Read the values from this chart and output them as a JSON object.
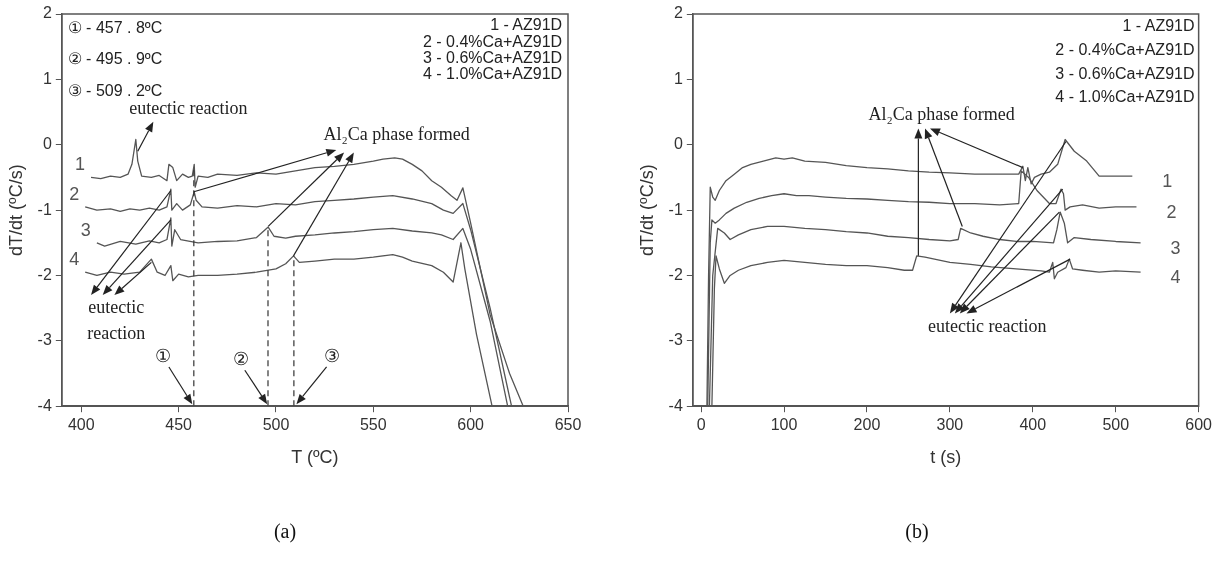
{
  "chart_data": [
    {
      "type": "line",
      "title": "(a)",
      "xlabel": "T (ºC)",
      "ylabel": "dT/dt (ºC/s)",
      "xlim": [
        390,
        650
      ],
      "ylim": [
        -4,
        2
      ],
      "xticks": [
        400,
        450,
        500,
        550,
        600,
        650
      ],
      "yticks": [
        -4,
        -3,
        -2,
        -1,
        0,
        1,
        2
      ],
      "series": [
        {
          "name": "1",
          "color": "#555555",
          "x": [
            405,
            410,
            415,
            420,
            424,
            426,
            428,
            429,
            431,
            436,
            440,
            444,
            445,
            447,
            449,
            452,
            455,
            457,
            458,
            458.5,
            460,
            465,
            470,
            480,
            490,
            500,
            510,
            520,
            530,
            540,
            550,
            555,
            561,
            565,
            570,
            575,
            580,
            585,
            590,
            593,
            596,
            600,
            610,
            620,
            627
          ],
          "values": [
            -0.5,
            -0.52,
            -0.48,
            -0.5,
            -0.45,
            -0.3,
            0.08,
            -0.25,
            -0.48,
            -0.5,
            -0.47,
            -0.55,
            -0.3,
            -0.35,
            -0.55,
            -0.45,
            -0.5,
            -0.48,
            -0.3,
            -0.65,
            -0.48,
            -0.5,
            -0.45,
            -0.47,
            -0.43,
            -0.45,
            -0.4,
            -0.35,
            -0.33,
            -0.3,
            -0.25,
            -0.22,
            -0.2,
            -0.22,
            -0.3,
            -0.4,
            -0.55,
            -0.65,
            -0.78,
            -0.85,
            -0.66,
            -1.2,
            -2.6,
            -3.5,
            -4
          ]
        },
        {
          "name": "2",
          "color": "#555555",
          "x": [
            402,
            408,
            415,
            420,
            425,
            430,
            435,
            440,
            444,
            446,
            446.5,
            449,
            452,
            456,
            458,
            459,
            462,
            470,
            480,
            490,
            500,
            510,
            520,
            530,
            540,
            550,
            560,
            570,
            580,
            586,
            591,
            596,
            600,
            610,
            621
          ],
          "values": [
            -0.95,
            -1.0,
            -0.98,
            -1.02,
            -0.98,
            -1.0,
            -0.97,
            -1.0,
            -0.95,
            -0.68,
            -1.0,
            -0.9,
            -1.0,
            -0.92,
            -0.72,
            -0.85,
            -0.95,
            -0.97,
            -0.93,
            -0.95,
            -0.9,
            -0.92,
            -0.87,
            -0.85,
            -0.83,
            -0.8,
            -0.78,
            -0.83,
            -0.9,
            -1.0,
            -1.05,
            -0.9,
            -1.3,
            -2.5,
            -4
          ]
        },
        {
          "name": "3",
          "color": "#555555",
          "x": [
            408,
            412,
            420,
            428,
            435,
            440,
            444,
            446,
            446.5,
            448,
            451,
            460,
            470,
            480,
            490,
            496,
            499,
            505,
            510,
            520,
            530,
            540,
            550,
            560,
            570,
            580,
            585,
            591,
            596,
            600,
            610,
            619
          ],
          "values": [
            -1.5,
            -1.55,
            -1.48,
            -1.52,
            -1.47,
            -1.5,
            -1.45,
            -1.12,
            -1.55,
            -1.3,
            -1.45,
            -1.5,
            -1.48,
            -1.47,
            -1.42,
            -1.26,
            -1.4,
            -1.43,
            -1.4,
            -1.38,
            -1.35,
            -1.33,
            -1.3,
            -1.28,
            -1.32,
            -1.35,
            -1.38,
            -1.45,
            -1.28,
            -1.6,
            -2.7,
            -4
          ]
        },
        {
          "name": "4",
          "color": "#555555",
          "x": [
            402,
            408,
            415,
            422,
            430,
            433,
            436,
            439,
            443,
            446,
            447,
            450,
            455,
            460,
            470,
            480,
            490,
            500,
            505,
            509,
            512,
            520,
            530,
            540,
            550,
            560,
            565,
            570,
            580,
            586,
            591,
            595,
            597,
            603,
            611
          ],
          "values": [
            -1.95,
            -2.0,
            -1.95,
            -1.98,
            -1.95,
            -1.85,
            -1.75,
            -1.95,
            -2.0,
            -1.85,
            -2.08,
            -1.98,
            -2.02,
            -2.0,
            -2.0,
            -1.98,
            -1.95,
            -1.9,
            -1.82,
            -1.7,
            -1.8,
            -1.78,
            -1.75,
            -1.75,
            -1.72,
            -1.68,
            -1.72,
            -1.78,
            -1.85,
            -1.95,
            -2.1,
            -1.5,
            -1.9,
            -2.9,
            -4
          ]
        }
      ],
      "ref_lines": [
        {
          "axis": "x",
          "value": 457.8,
          "label": "①",
          "line_style": "dashed"
        },
        {
          "axis": "x",
          "value": 495.9,
          "label": "②",
          "line_style": "dashed"
        },
        {
          "axis": "x",
          "value": 509.2,
          "label": "③",
          "line_style": "dashed"
        }
      ],
      "annotations": [
        "① - 457 . 8ºC",
        "② - 495 . 9ºC",
        "③ - 509 . 2ºC",
        "eutectic reaction",
        {
          "text": "Al₂Ca phase formed",
          "x": 457.8,
          "y": -0.72
        },
        {
          "text": "eutectic reaction",
          "x": 446,
          "y": -0.7
        },
        "1 - AZ91D",
        "2 - 0.4%Ca+AZ91D",
        "3 - 0.6%Ca+AZ91D",
        "4 - 1.0%Ca+AZ91D"
      ]
    },
    {
      "type": "line",
      "title": "(b)",
      "xlabel": "t (s)",
      "ylabel": "dT/dt (ºC/s)",
      "xlim": [
        -10,
        600
      ],
      "ylim": [
        -4,
        2
      ],
      "xticks": [
        0,
        100,
        200,
        300,
        400,
        500,
        600
      ],
      "yticks": [
        -4,
        -3,
        -2,
        -1,
        0,
        1,
        2
      ],
      "series": [
        {
          "name": "1",
          "color": "#555555",
          "x": [
            7,
            9,
            11,
            14,
            17,
            22,
            30,
            40,
            50,
            60,
            75,
            90,
            100,
            110,
            125,
            150,
            175,
            200,
            225,
            250,
            275,
            300,
            330,
            360,
            383,
            388,
            391,
            394,
            398,
            402,
            410,
            420,
            430,
            439,
            450,
            465,
            480,
            500,
            520
          ],
          "values": [
            -4,
            -2,
            -0.65,
            -0.8,
            -0.85,
            -0.7,
            -0.55,
            -0.45,
            -0.35,
            -0.3,
            -0.25,
            -0.2,
            -0.22,
            -0.2,
            -0.25,
            -0.27,
            -0.32,
            -0.35,
            -0.37,
            -0.4,
            -0.42,
            -0.43,
            -0.45,
            -0.45,
            -0.45,
            -0.33,
            -0.55,
            -0.35,
            -0.6,
            -0.5,
            -0.45,
            -0.42,
            -0.3,
            0.08,
            -0.1,
            -0.25,
            -0.48,
            -0.48,
            -0.48
          ]
        },
        {
          "name": "2",
          "color": "#555555",
          "x": [
            8,
            11,
            13,
            17,
            22,
            30,
            40,
            55,
            70,
            85,
            100,
            115,
            130,
            150,
            175,
            200,
            225,
            250,
            275,
            300,
            330,
            360,
            383,
            386,
            395,
            405,
            420,
            428,
            434,
            437,
            439,
            445,
            460,
            480,
            500,
            525
          ],
          "values": [
            -4,
            -1.5,
            -1.15,
            -1.2,
            -1.15,
            -1.05,
            -0.97,
            -0.88,
            -0.82,
            -0.78,
            -0.75,
            -0.78,
            -0.78,
            -0.8,
            -0.82,
            -0.83,
            -0.85,
            -0.87,
            -0.88,
            -0.9,
            -0.9,
            -0.92,
            -0.9,
            -0.4,
            -0.5,
            -0.7,
            -0.9,
            -0.9,
            -0.68,
            -0.75,
            -1.0,
            -0.95,
            -0.92,
            -0.97,
            -0.95,
            -0.95
          ]
        },
        {
          "name": "3",
          "color": "#555555",
          "x": [
            10,
            14,
            20,
            28,
            35,
            45,
            60,
            80,
            100,
            125,
            150,
            175,
            200,
            225,
            250,
            275,
            300,
            310,
            313,
            325,
            340,
            360,
            380,
            400,
            425,
            429,
            433,
            438,
            442,
            450,
            470,
            500,
            530
          ],
          "values": [
            -4,
            -2,
            -1.28,
            -1.35,
            -1.45,
            -1.38,
            -1.3,
            -1.25,
            -1.25,
            -1.28,
            -1.3,
            -1.33,
            -1.35,
            -1.4,
            -1.42,
            -1.45,
            -1.47,
            -1.45,
            -1.28,
            -1.35,
            -1.4,
            -1.45,
            -1.48,
            -1.48,
            -1.5,
            -1.3,
            -1.03,
            -1.2,
            -1.5,
            -1.42,
            -1.45,
            -1.48,
            -1.5
          ]
        },
        {
          "name": "4",
          "color": "#555555",
          "x": [
            13,
            16,
            18,
            22,
            28,
            35,
            45,
            60,
            80,
            100,
            125,
            150,
            175,
            200,
            225,
            245,
            255,
            260,
            270,
            300,
            325,
            350,
            380,
            410,
            420,
            424,
            426,
            430,
            440,
            444,
            448,
            460,
            480,
            500,
            530
          ],
          "values": [
            -4,
            -2.2,
            -1.7,
            -1.9,
            -2.12,
            -2.0,
            -1.92,
            -1.85,
            -1.8,
            -1.77,
            -1.8,
            -1.83,
            -1.85,
            -1.85,
            -1.88,
            -1.92,
            -1.92,
            -1.7,
            -1.72,
            -1.8,
            -1.83,
            -1.87,
            -1.9,
            -1.93,
            -1.95,
            -1.8,
            -2.05,
            -1.95,
            -1.88,
            -1.75,
            -1.9,
            -1.92,
            -1.95,
            -1.93,
            -1.95
          ]
        }
      ],
      "annotations": [
        {
          "text": "Al₂Ca phase formed",
          "x": 262,
          "y": -1.7
        },
        {
          "text": "eutectic reaction",
          "x": 440,
          "y": 0.05
        },
        "1 - AZ91D",
        "2 - 0.4%Ca+AZ91D",
        "3 - 0.6%Ca+AZ91D",
        "4 - 1.0%Ca+AZ91D"
      ]
    }
  ]
}
